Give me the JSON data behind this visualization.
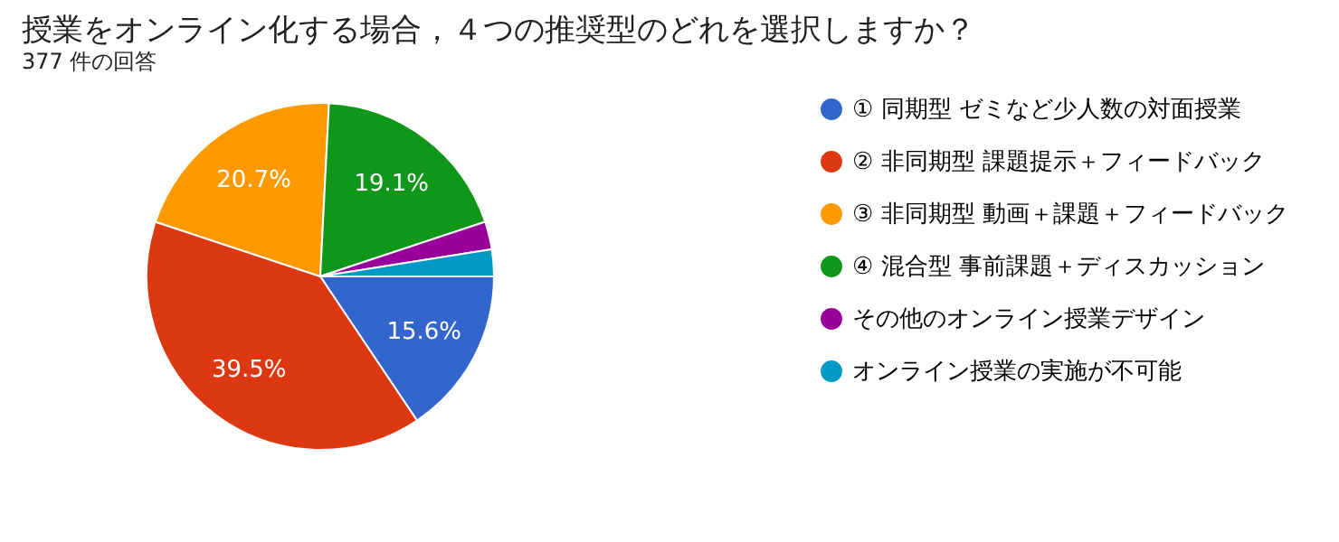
{
  "chart_data": {
    "type": "pie",
    "title": "授業をオンライン化する場合，４つの推奨型のどれを選択しますか？",
    "subtitle": "377 件の回答",
    "categories": [
      "① 同期型 ゼミなど少人数の対面授業",
      "② 非同期型 課題提示＋フィードバック",
      "③ 非同期型 動画＋課題＋フィードバック",
      "④ 混合型 事前課題＋ディスカッション",
      "その他のオンライン授業デザイン",
      "オンライン授業の実施が不可能"
    ],
    "values": [
      15.6,
      39.5,
      20.7,
      19.1,
      2.6,
      2.5
    ],
    "value_labels": [
      "15.6%",
      "39.5%",
      "20.7%",
      "19.1%",
      null,
      null
    ],
    "colors": [
      "#3366cc",
      "#dc3912",
      "#ff9900",
      "#109618",
      "#990099",
      "#0099c6"
    ],
    "legend": "right"
  }
}
